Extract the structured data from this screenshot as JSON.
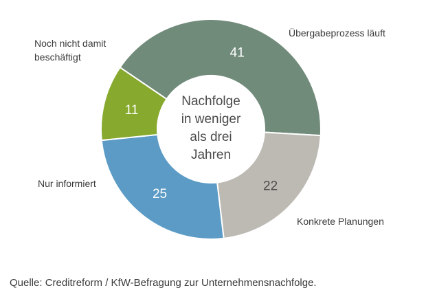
{
  "chart_data": {
    "type": "pie",
    "donut": true,
    "center_label": [
      "Nachfolge",
      "in weniger",
      "als drei",
      "Jahren"
    ],
    "slices": [
      {
        "name": "Übergabeprozess läuft",
        "value": 41,
        "color": "#718b7b",
        "value_color": "#ffffff"
      },
      {
        "name": "Konkrete Planungen",
        "value": 22,
        "color": "#bdbab4",
        "value_color": "#4a4a4a"
      },
      {
        "name": "Nur informiert",
        "value": 25,
        "color": "#5b9bc5",
        "value_color": "#ffffff"
      },
      {
        "name": "Noch nicht damit beschäftigt",
        "value": 11,
        "color": "#86a92e",
        "value_color": "#ffffff"
      }
    ]
  },
  "source": "Quelle: Creditreform / KfW-Befragung zur Unternehmensnachfolge."
}
